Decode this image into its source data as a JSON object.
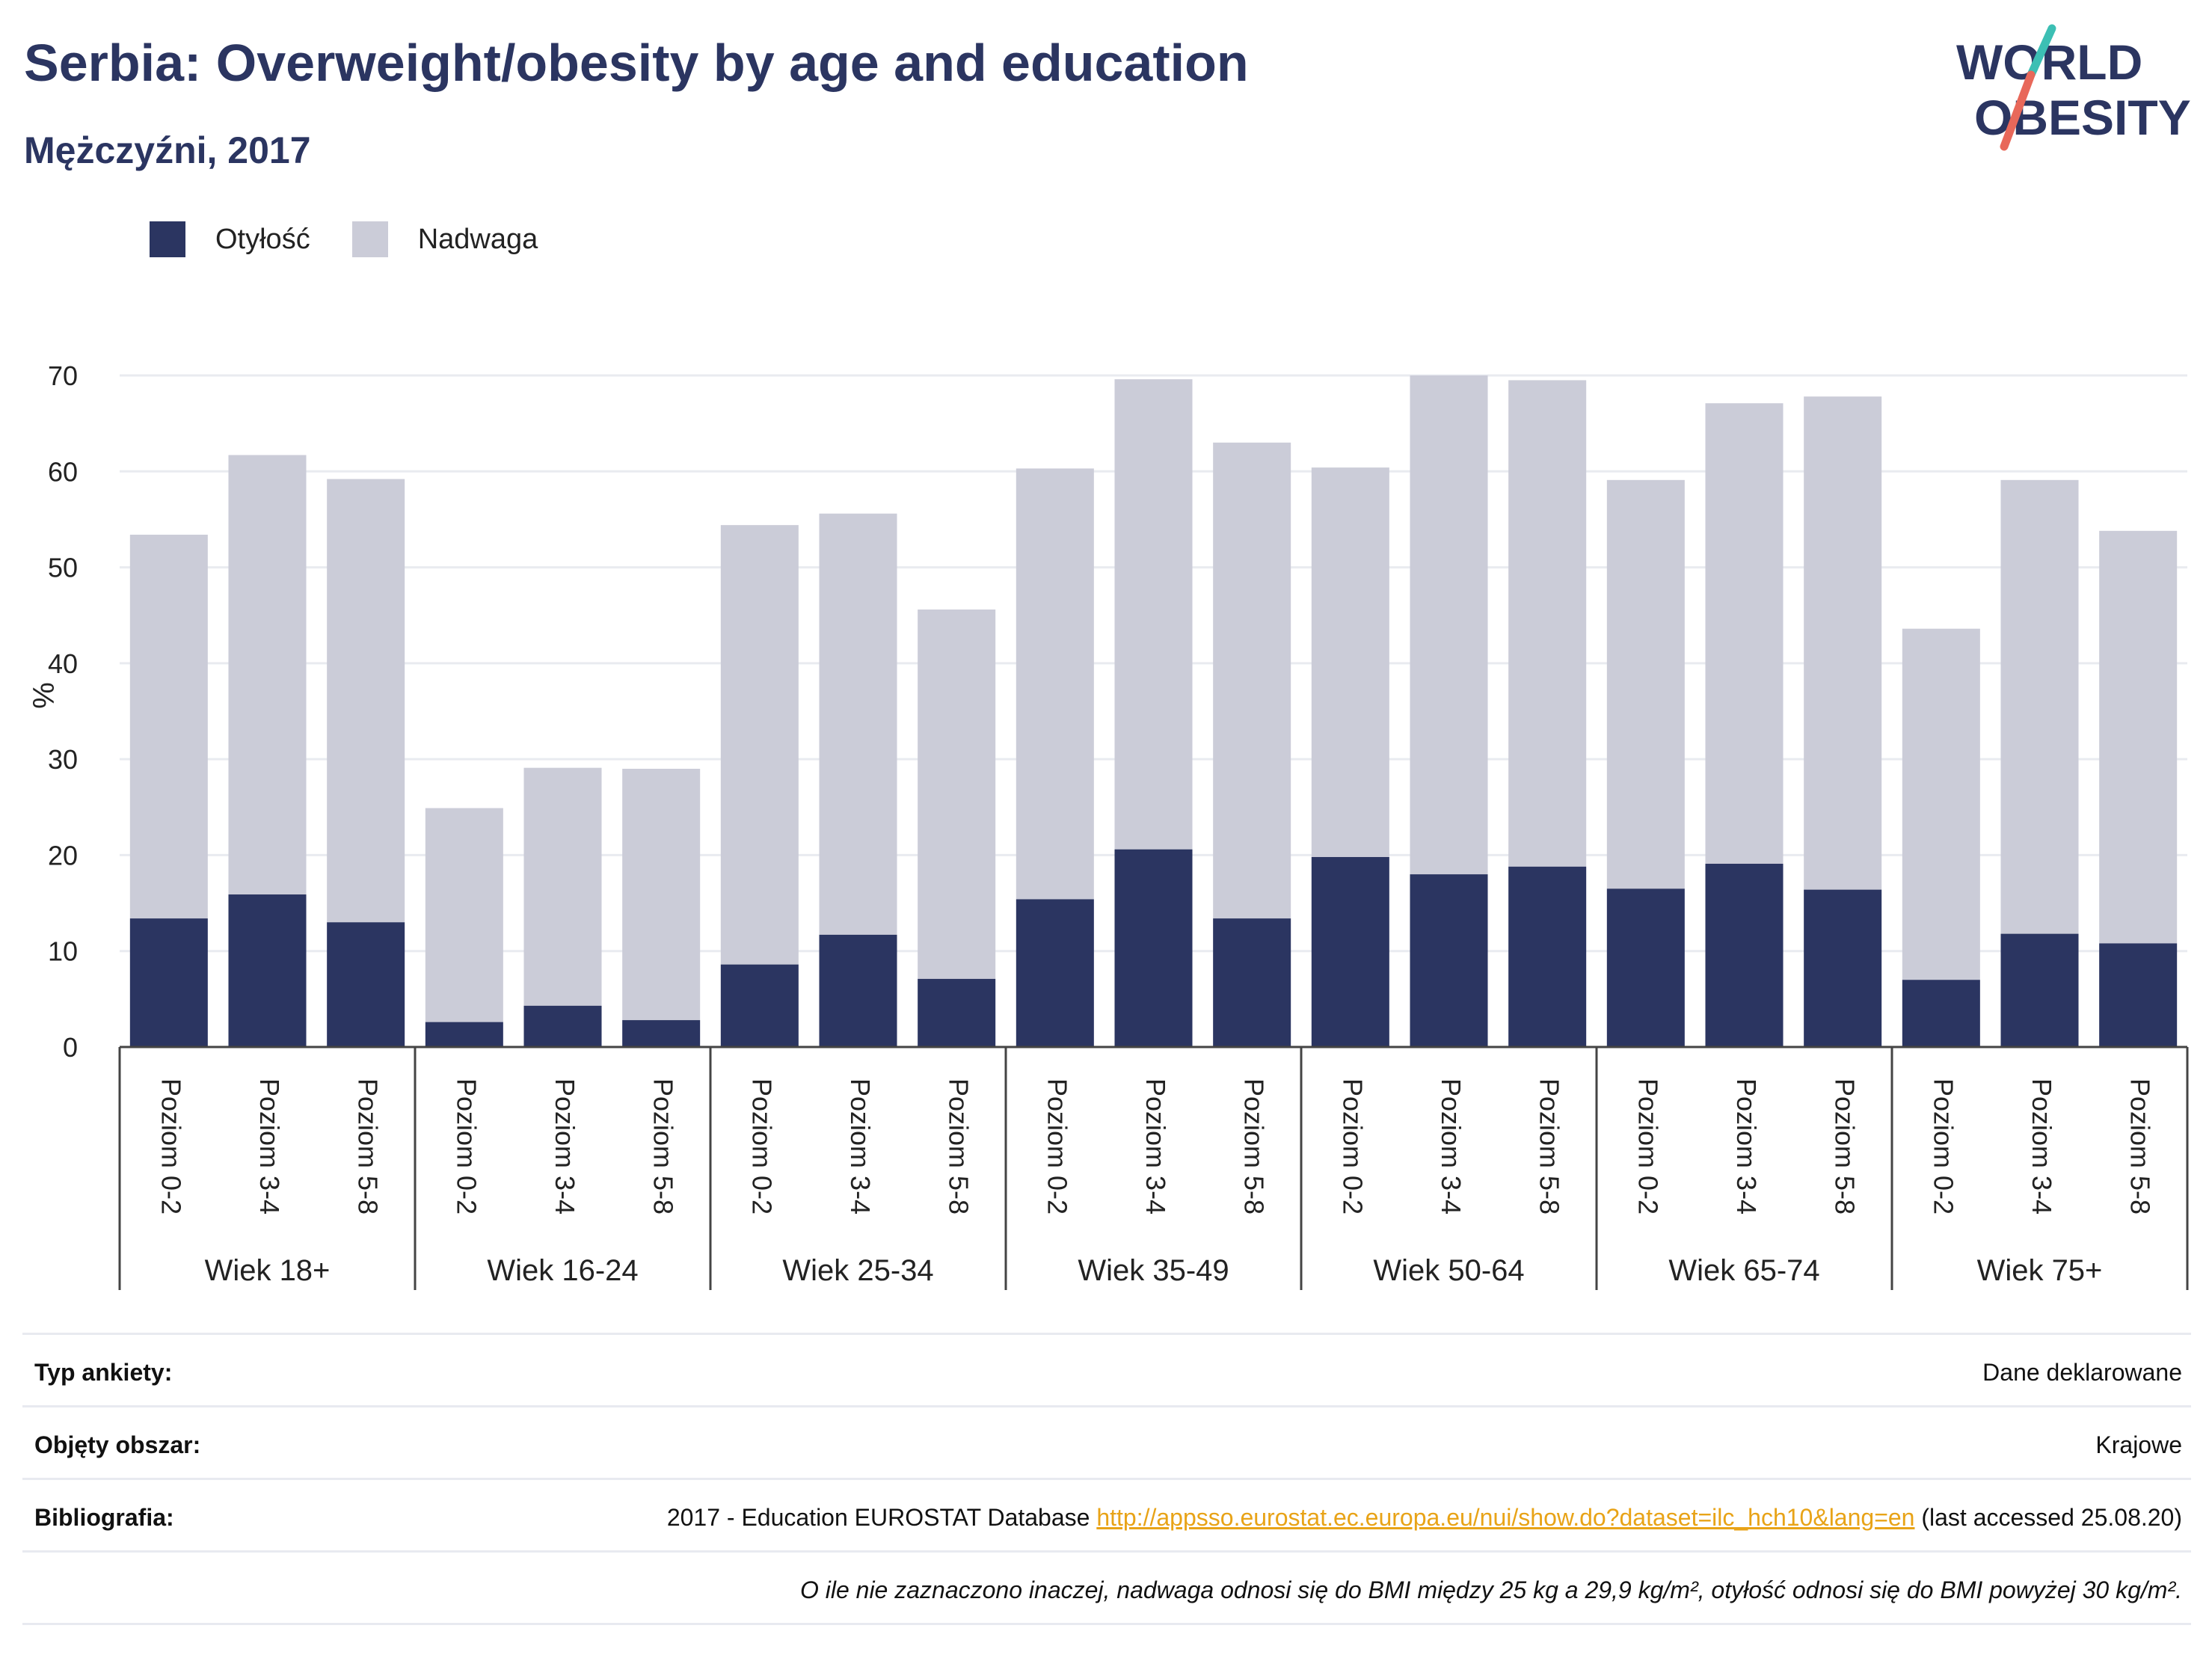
{
  "header": {
    "title": "Serbia: Overweight/obesity by age and education",
    "subtitle": "Mężczyźni, 2017"
  },
  "logo": {
    "line1": "WORLD",
    "line2": "OBESITY",
    "colors": {
      "text": "#2b3561",
      "accent_teal": "#3cbfb4",
      "accent_red": "#e8685a"
    }
  },
  "legend": [
    {
      "label": "Otyłość",
      "color": "#2b3561"
    },
    {
      "label": "Nadwaga",
      "color": "#cbccd8"
    }
  ],
  "chart_data": {
    "type": "bar",
    "stacked": true,
    "ylabel": "%",
    "ylim": [
      0,
      70
    ],
    "yticks": [
      0,
      10,
      20,
      30,
      40,
      50,
      60,
      70
    ],
    "grid": true,
    "legend_position": "top-left",
    "groups": [
      {
        "label": "Wiek 18+",
        "categories": [
          "Poziom 0-2",
          "Poziom 3-4",
          "Poziom 5-8"
        ]
      },
      {
        "label": "Wiek 16-24",
        "categories": [
          "Poziom 0-2",
          "Poziom 3-4",
          "Poziom 5-8"
        ]
      },
      {
        "label": "Wiek 25-34",
        "categories": [
          "Poziom 0-2",
          "Poziom 3-4",
          "Poziom 5-8"
        ]
      },
      {
        "label": "Wiek 35-49",
        "categories": [
          "Poziom 0-2",
          "Poziom 3-4",
          "Poziom 5-8"
        ]
      },
      {
        "label": "Wiek 50-64",
        "categories": [
          "Poziom 0-2",
          "Poziom 3-4",
          "Poziom 5-8"
        ]
      },
      {
        "label": "Wiek 65-74",
        "categories": [
          "Poziom 0-2",
          "Poziom 3-4",
          "Poziom 5-8"
        ]
      },
      {
        "label": "Wiek 75+",
        "categories": [
          "Poziom 0-2",
          "Poziom 3-4",
          "Poziom 5-8"
        ]
      }
    ],
    "series": [
      {
        "name": "Otyłość",
        "color": "#2b3561",
        "values": [
          13.4,
          15.9,
          13.0,
          2.6,
          4.3,
          2.8,
          8.6,
          11.7,
          7.1,
          15.4,
          20.6,
          13.4,
          19.8,
          18.0,
          18.8,
          16.5,
          19.1,
          16.4,
          7.0,
          11.8,
          10.8
        ]
      },
      {
        "name": "Nadwaga",
        "color": "#cbccd8",
        "values": [
          40.0,
          45.8,
          46.2,
          22.3,
          24.8,
          26.2,
          45.8,
          43.9,
          38.5,
          44.9,
          49.0,
          49.6,
          40.6,
          52.0,
          50.7,
          42.6,
          48.0,
          51.4,
          36.6,
          47.3,
          43.0
        ]
      }
    ]
  },
  "info": {
    "survey_type_label": "Typ ankiety:",
    "survey_type_value": "Dane deklarowane",
    "coverage_label": "Objęty obszar:",
    "coverage_value": "Krajowe",
    "bibliography_label": "Bibliografia:",
    "bibliography_prefix": "2017 - Education EUROSTAT Database",
    "bibliography_link": "http://appsso.eurostat.ec.europa.eu/nui/show.do?dataset=ilc_hch10&lang=en",
    "bibliography_suffix": "(last accessed 25.08.20)",
    "footnote": "O ile nie zaznaczono inaczej, nadwaga odnosi się do BMI między 25 kg a 29,9 kg/m², otyłość odnosi się do BMI powyżej 30 kg/m²."
  }
}
